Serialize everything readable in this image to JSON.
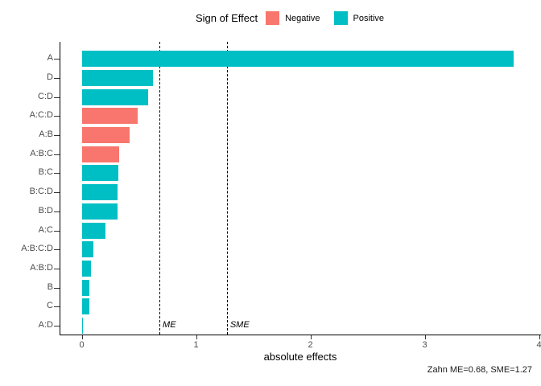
{
  "chart_data": {
    "type": "bar",
    "orientation": "horizontal",
    "title": "",
    "xlabel": "absolute effects",
    "ylabel": "",
    "xlim": [
      0,
      4
    ],
    "xticks": [
      0,
      1,
      2,
      3,
      4
    ],
    "grid": false,
    "categories": [
      "A",
      "D",
      "C:D",
      "A:C:D",
      "A:B",
      "A:B:C",
      "B:C",
      "B:C:D",
      "B:D",
      "A:C",
      "A:B:C:D",
      "A:B:D",
      "B",
      "C",
      "A:D"
    ],
    "values": [
      3.78,
      0.62,
      0.58,
      0.49,
      0.42,
      0.33,
      0.32,
      0.31,
      0.31,
      0.21,
      0.1,
      0.08,
      0.07,
      0.07,
      0.01
    ],
    "signs": [
      "positive",
      "positive",
      "positive",
      "negative",
      "negative",
      "negative",
      "positive",
      "positive",
      "positive",
      "positive",
      "positive",
      "positive",
      "positive",
      "positive",
      "positive"
    ],
    "legend": {
      "title": "Sign of Effect",
      "position": "top",
      "entries": [
        {
          "label": "Negative",
          "sign": "negative",
          "color": "#F8766D"
        },
        {
          "label": "Positive",
          "sign": "positive",
          "color": "#00BFC4"
        }
      ]
    },
    "reference_lines": [
      {
        "label": "ME",
        "value": 0.68,
        "style": "dashed",
        "color": "#000000"
      },
      {
        "label": "SME",
        "value": 1.27,
        "style": "dashed",
        "color": "#000000"
      }
    ],
    "caption": "Zahn ME=0.68, SME=1.27",
    "axis_color": "#000000",
    "tick_label_color": "#4d4d4d"
  }
}
